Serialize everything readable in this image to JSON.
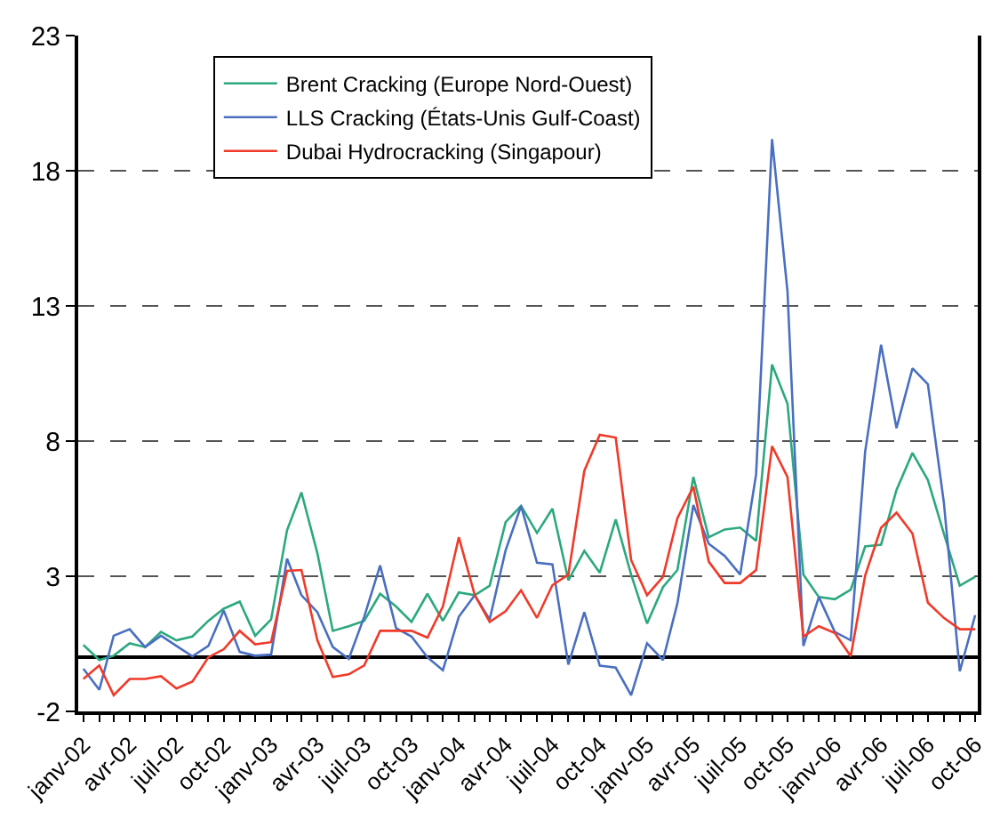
{
  "chart_data": {
    "type": "line",
    "x": [
      "2002-01",
      "2002-02",
      "2002-03",
      "2002-04",
      "2002-05",
      "2002-06",
      "2002-07",
      "2002-08",
      "2002-09",
      "2002-10",
      "2002-11",
      "2002-12",
      "2003-01",
      "2003-02",
      "2003-03",
      "2003-04",
      "2003-05",
      "2003-06",
      "2003-07",
      "2003-08",
      "2003-09",
      "2003-10",
      "2003-11",
      "2003-12",
      "2004-01",
      "2004-02",
      "2004-03",
      "2004-04",
      "2004-05",
      "2004-06",
      "2004-07",
      "2004-08",
      "2004-09",
      "2004-10",
      "2004-11",
      "2004-12",
      "2005-01",
      "2005-02",
      "2005-03",
      "2005-04",
      "2005-05",
      "2005-06",
      "2005-07",
      "2005-08",
      "2005-09",
      "2005-10",
      "2005-11",
      "2005-12",
      "2006-01",
      "2006-02",
      "2006-03",
      "2006-04",
      "2006-05",
      "2006-06",
      "2006-07",
      "2006-08",
      "2006-09",
      "2006-10"
    ],
    "series": [
      {
        "name": "Brent Cracking (Europe Nord-Ouest)",
        "color": "#2ca87f",
        "values": [
          0.46,
          -0.1,
          0.06,
          0.52,
          0.38,
          0.94,
          0.63,
          0.77,
          1.35,
          1.8,
          2.06,
          0.8,
          1.4,
          4.7,
          6.1,
          3.85,
          0.98,
          1.15,
          1.35,
          2.35,
          1.88,
          1.31,
          2.35,
          1.35,
          2.4,
          2.3,
          2.65,
          5.0,
          5.6,
          4.6,
          5.5,
          2.85,
          3.94,
          3.13,
          5.1,
          3.06,
          1.25,
          2.6,
          3.23,
          6.67,
          4.44,
          4.73,
          4.8,
          4.31,
          10.83,
          9.38,
          3.06,
          2.23,
          2.15,
          2.5,
          4.1,
          4.17,
          6.19,
          7.56,
          6.56,
          4.58,
          2.65,
          2.98
        ]
      },
      {
        "name": "LLS Cracking (États-Unis Gulf-Coast)",
        "color": "#4a6fc0",
        "values": [
          -0.42,
          -1.2,
          0.8,
          1.04,
          0.38,
          0.8,
          0.42,
          0.04,
          0.42,
          1.73,
          0.2,
          0.06,
          0.1,
          3.65,
          2.3,
          1.67,
          0.38,
          -0.06,
          1.5,
          3.4,
          1.08,
          0.77,
          0.0,
          -0.48,
          1.5,
          2.3,
          1.4,
          3.96,
          5.6,
          3.5,
          3.44,
          -0.27,
          1.67,
          -0.31,
          -0.38,
          -1.4,
          0.52,
          -0.1,
          2.0,
          5.63,
          4.2,
          3.75,
          3.06,
          6.77,
          19.17,
          13.54,
          0.42,
          2.23,
          0.94,
          0.63,
          7.6,
          11.56,
          8.48,
          10.69,
          10.1,
          5.73,
          -0.52,
          1.56
        ]
      },
      {
        "name": "Dubai Hydrocracking (Singapour)",
        "color": "#f03a2a",
        "values": [
          -0.8,
          -0.3,
          -1.4,
          -0.8,
          -0.8,
          -0.7,
          -1.15,
          -0.9,
          0.0,
          0.3,
          0.98,
          0.48,
          0.56,
          3.2,
          3.23,
          0.63,
          -0.73,
          -0.63,
          -0.3,
          0.98,
          0.98,
          0.98,
          0.73,
          1.88,
          4.44,
          2.3,
          1.31,
          1.71,
          2.48,
          1.46,
          2.67,
          3.06,
          6.9,
          8.23,
          8.13,
          3.6,
          2.3,
          2.98,
          5.15,
          6.31,
          3.54,
          2.75,
          2.75,
          3.23,
          7.81,
          6.67,
          0.77,
          1.15,
          0.9,
          0.04,
          3.02,
          4.79,
          5.35,
          4.58,
          2.02,
          1.46,
          1.04,
          1.04
        ]
      }
    ],
    "xlim": [
      "2001-12-22",
      "2006-10-06"
    ],
    "xticks": [
      {
        "value": "2002-01",
        "label": "janv-02"
      },
      {
        "value": "2002-02",
        "label": null
      },
      {
        "value": "2002-03",
        "label": null
      },
      {
        "value": "2002-04",
        "label": "avr-02"
      },
      {
        "value": "2002-05",
        "label": null
      },
      {
        "value": "2002-06",
        "label": null
      },
      {
        "value": "2002-07",
        "label": "juil-02"
      },
      {
        "value": "2002-08",
        "label": null
      },
      {
        "value": "2002-09",
        "label": null
      },
      {
        "value": "2002-10",
        "label": "oct-02"
      },
      {
        "value": "2002-11",
        "label": null
      },
      {
        "value": "2002-12",
        "label": null
      },
      {
        "value": "2003-01",
        "label": "janv-03"
      },
      {
        "value": "2003-02",
        "label": null
      },
      {
        "value": "2003-03",
        "label": null
      },
      {
        "value": "2003-04",
        "label": "avr-03"
      },
      {
        "value": "2003-05",
        "label": null
      },
      {
        "value": "2003-06",
        "label": null
      },
      {
        "value": "2003-07",
        "label": "juil-03"
      },
      {
        "value": "2003-08",
        "label": null
      },
      {
        "value": "2003-09",
        "label": null
      },
      {
        "value": "2003-10",
        "label": "oct-03"
      },
      {
        "value": "2003-11",
        "label": null
      },
      {
        "value": "2003-12",
        "label": null
      },
      {
        "value": "2004-01",
        "label": "janv-04"
      },
      {
        "value": "2004-02",
        "label": null
      },
      {
        "value": "2004-03",
        "label": null
      },
      {
        "value": "2004-04",
        "label": "avr-04"
      },
      {
        "value": "2004-05",
        "label": null
      },
      {
        "value": "2004-06",
        "label": null
      },
      {
        "value": "2004-07",
        "label": "juil-04"
      },
      {
        "value": "2004-08",
        "label": null
      },
      {
        "value": "2004-09",
        "label": null
      },
      {
        "value": "2004-10",
        "label": "oct-04"
      },
      {
        "value": "2004-11",
        "label": null
      },
      {
        "value": "2004-12",
        "label": null
      },
      {
        "value": "2005-01",
        "label": "janv-05"
      },
      {
        "value": "2005-02",
        "label": null
      },
      {
        "value": "2005-03",
        "label": null
      },
      {
        "value": "2005-04",
        "label": "avr-05"
      },
      {
        "value": "2005-05",
        "label": null
      },
      {
        "value": "2005-06",
        "label": null
      },
      {
        "value": "2005-07",
        "label": "juil-05"
      },
      {
        "value": "2005-08",
        "label": null
      },
      {
        "value": "2005-09",
        "label": null
      },
      {
        "value": "2005-10",
        "label": "oct-05"
      },
      {
        "value": "2005-11",
        "label": null
      },
      {
        "value": "2005-12",
        "label": null
      },
      {
        "value": "2006-01",
        "label": "janv-06"
      },
      {
        "value": "2006-02",
        "label": null
      },
      {
        "value": "2006-03",
        "label": null
      },
      {
        "value": "2006-04",
        "label": "avr-06"
      },
      {
        "value": "2006-05",
        "label": null
      },
      {
        "value": "2006-06",
        "label": null
      },
      {
        "value": "2006-07",
        "label": "juil-06"
      },
      {
        "value": "2006-08",
        "label": null
      },
      {
        "value": "2006-09",
        "label": null
      },
      {
        "value": "2006-10",
        "label": "oct-06"
      }
    ],
    "ylim": [
      -2,
      23
    ],
    "yticks": [
      -2,
      3,
      8,
      13,
      18,
      23
    ],
    "grid": "y",
    "legend": "top left",
    "marker": "none",
    "line_style": "solid"
  }
}
